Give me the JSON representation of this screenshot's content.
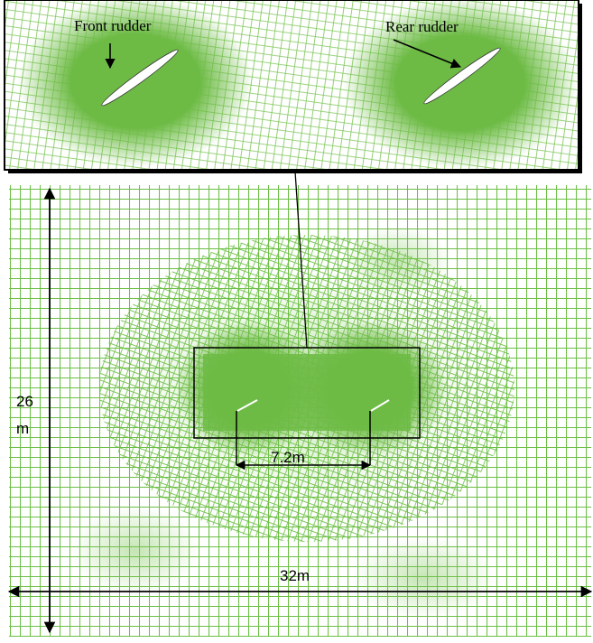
{
  "labels": {
    "front_rudder": "Front rudder",
    "rear_rudder": "Rear rudder",
    "height_value": "26",
    "height_unit": "m",
    "spacing": "7.2m",
    "width": "32m"
  }
}
